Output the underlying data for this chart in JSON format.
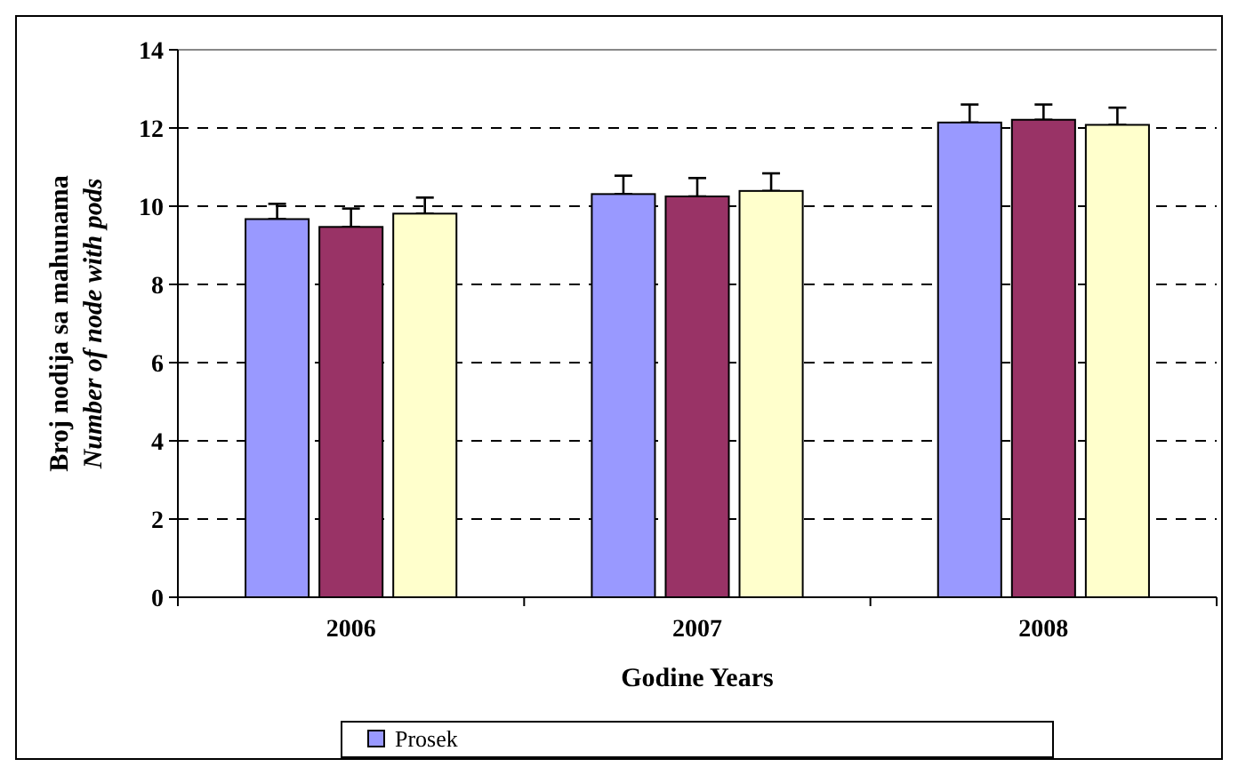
{
  "chart_data": {
    "type": "bar",
    "xlabel": "Godine Years",
    "ylabel": "Broj nodija sa mahunama\nNumber of node with pods",
    "categories": [
      "2006",
      "2007",
      "2008"
    ],
    "series": [
      {
        "name": "Prosek",
        "color": "#9999ff",
        "values": [
          9.67,
          10.31,
          12.14
        ],
        "errors": [
          [
            9.67,
            10.06
          ],
          [
            10.31,
            10.78
          ],
          [
            12.14,
            12.6
          ]
        ]
      },
      {
        "color": "#993366",
        "values": [
          9.47,
          10.25,
          12.21
        ],
        "errors": [
          [
            9.47,
            9.94
          ],
          [
            10.25,
            10.72
          ],
          [
            12.21,
            12.6
          ]
        ]
      },
      {
        "color": "#ffffcc",
        "values": [
          9.81,
          10.39,
          12.08
        ],
        "errors": [
          [
            9.81,
            10.22
          ],
          [
            10.39,
            10.84
          ],
          [
            12.08,
            12.52
          ]
        ]
      }
    ],
    "ylim": [
      0,
      14
    ],
    "yticks": [
      0,
      2,
      4,
      6,
      8,
      10,
      12,
      14
    ],
    "grid": "y",
    "legend": "bottom"
  }
}
